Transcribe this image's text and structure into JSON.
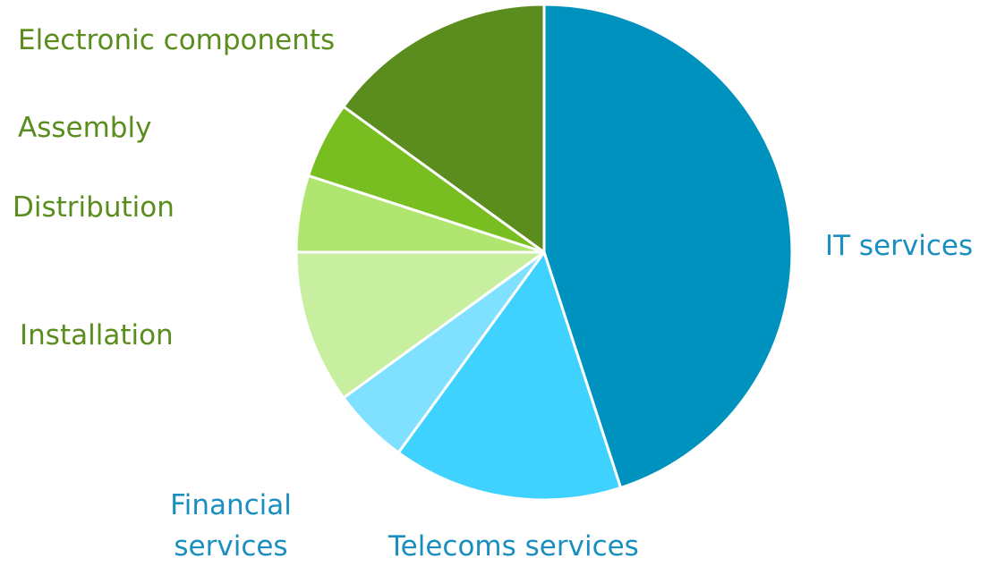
{
  "chart_data": {
    "type": "pie",
    "categories": [
      "IT services",
      "Telecoms services",
      "Financial services",
      "Installation",
      "Distribution",
      "Assembly",
      "Electronic components"
    ],
    "values": [
      45,
      15,
      5,
      10,
      5,
      5,
      15
    ],
    "colors": [
      "#0092be",
      "#40d2ff",
      "#80e0ff",
      "#c8eea0",
      "#b0e670",
      "#78be20",
      "#5a8c1e"
    ]
  }
}
